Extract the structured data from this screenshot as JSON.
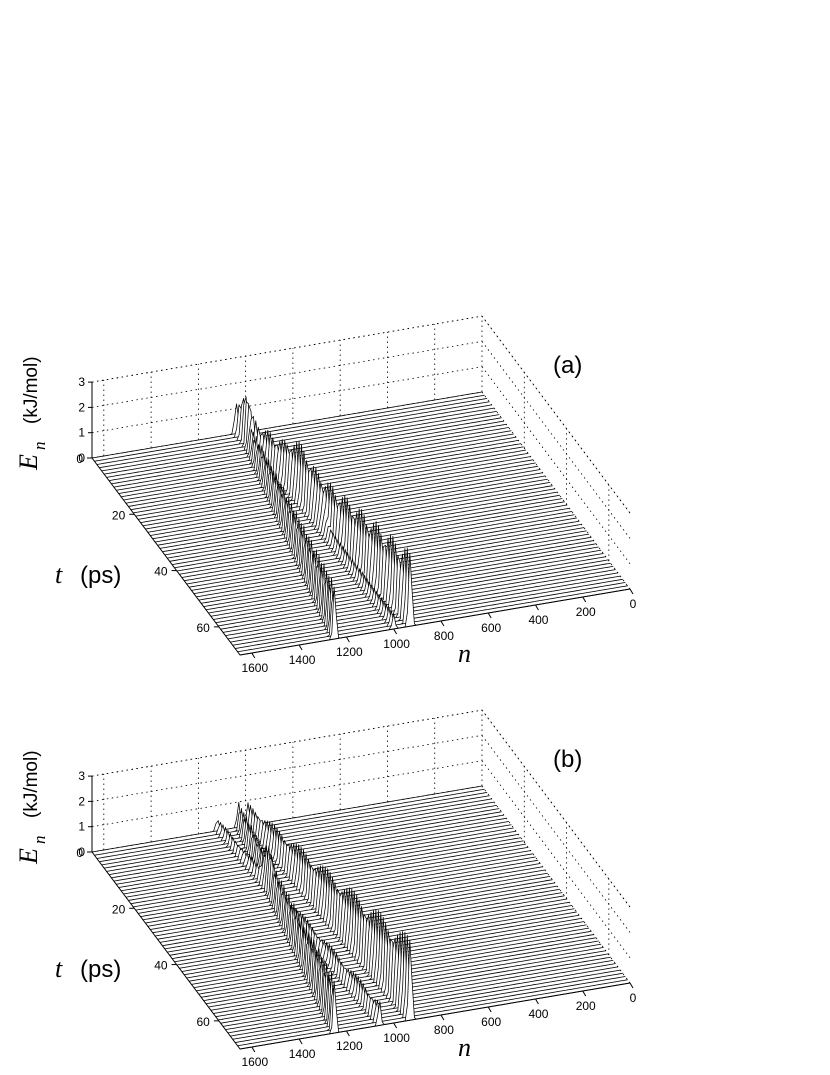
{
  "chart_data": [
    {
      "panel_label": "(a)",
      "type": "waterfall",
      "z_label_main": "E",
      "z_label_sub": "n",
      "z_label_unit": "(kJ/mol)",
      "y_label_var": "t",
      "y_label_unit": "(ps)",
      "x_label": "n",
      "z_ticks": [
        "0",
        "1",
        "2",
        "3"
      ],
      "y_ticks": [
        "0",
        "20",
        "40",
        "60"
      ],
      "x_ticks": [
        "1600",
        "1400",
        "1200",
        "1000",
        "800",
        "600",
        "400",
        "200",
        "0"
      ],
      "zlim": [
        0,
        3
      ],
      "ylim": [
        0,
        70
      ],
      "xlim": [
        0,
        1650
      ],
      "grid": true,
      "peaks": [
        {
          "n_start": 1000,
          "n_end": 1000,
          "amp_start": 0.6,
          "amp_end": 0.6,
          "width": 8
        },
        {
          "n_start": 1040,
          "n_end": 930,
          "amp_start": 1.2,
          "amp_end": 3.0,
          "width": 9
        },
        {
          "n_start": 1020,
          "n_end": 1250,
          "amp_start": 1.0,
          "amp_end": 2.2,
          "width": 8
        }
      ]
    },
    {
      "panel_label": "(b)",
      "type": "waterfall",
      "z_label_main": "E",
      "z_label_sub": "n",
      "z_label_unit": "(kJ/mol)",
      "y_label_var": "t",
      "y_label_unit": "(ps)",
      "x_label": "n",
      "z_ticks": [
        "0",
        "1",
        "2",
        "3"
      ],
      "y_ticks": [
        "0",
        "20",
        "40",
        "60"
      ],
      "x_ticks": [
        "1600",
        "1400",
        "1200",
        "1000",
        "800",
        "600",
        "400",
        "200",
        "0"
      ],
      "zlim": [
        0,
        3
      ],
      "ylim": [
        0,
        70
      ],
      "xlim": [
        0,
        1650
      ],
      "grid": true,
      "peaks": [
        {
          "n_start": 1120,
          "n_end": 1060,
          "amp_start": 0.5,
          "amp_end": 1.0,
          "width": 8
        },
        {
          "n_start": 990,
          "n_end": 930,
          "amp_start": 0.9,
          "amp_end": 3.3,
          "width": 9
        },
        {
          "n_start": 1030,
          "n_end": 1250,
          "amp_start": 1.0,
          "amp_end": 2.2,
          "width": 8
        }
      ]
    }
  ]
}
